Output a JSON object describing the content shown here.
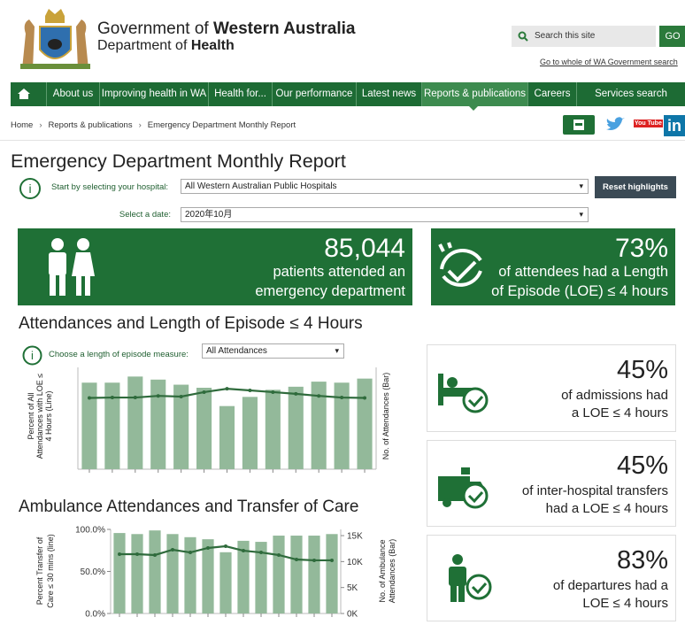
{
  "header": {
    "gov_prefix": "Government of",
    "gov_bold": "Western Australia",
    "dept_prefix": "Department of",
    "dept_bold": "Health",
    "search_placeholder": "Search this site",
    "search_button": "GO",
    "wa_link": "Go to whole of WA Government search"
  },
  "nav": [
    "About us",
    "Improving health in WA",
    "Health for...",
    "Our performance",
    "Latest news",
    "Reports & publications",
    "Careers",
    "Services search"
  ],
  "breadcrumb": [
    "Home",
    "Reports & publications",
    "Emergency Department Monthly Report"
  ],
  "social": {
    "youtube": "You Tube",
    "linkedin": "in"
  },
  "page_title": "Emergency Department Monthly Report",
  "hospital_label": "Start by selecting your hospital:",
  "hospital_value": "All Western Australian Public Hospitals",
  "reset_button": "Reset highlights",
  "date_label": "Select a date:",
  "date_value": "2020年10月",
  "summary": [
    {
      "value": "85,044",
      "lines": [
        "patients attended an",
        "emergency department"
      ]
    },
    {
      "value": "73%",
      "lines": [
        "of attendees had a Length",
        "of Episode (LOE) ≤ 4 hours"
      ]
    }
  ],
  "section1": {
    "title": "Attendances and Length of Episode ≤ 4 Hours",
    "measure_label": "Choose a length of episode measure:",
    "measure_value": "All Attendances"
  },
  "section2": {
    "title": "Ambulance Attendances and Transfer of Care"
  },
  "chart_data": [
    {
      "type": "combo",
      "categories": [
        null,
        null,
        null,
        null,
        null,
        null,
        null,
        null,
        null,
        null,
        null,
        null,
        null
      ],
      "ylabel": [
        "Percent of All",
        "Attendances with LOE ≤",
        "4 Hours (Line)"
      ],
      "y2label": [
        "No. of Attendances (Bar)"
      ],
      "ylim": [
        0,
        100
      ],
      "y2lim": [
        0,
        100000
      ],
      "series": [
        {
          "type": "bar",
          "axis": "y2",
          "color": "#93b99a",
          "values": [
            85000,
            85000,
            91000,
            88000,
            83000,
            80000,
            62000,
            71000,
            78000,
            81000,
            86000,
            85000,
            89000
          ]
        },
        {
          "type": "line",
          "color": "#2f6b3c",
          "values": [
            70,
            70.4,
            70.4,
            72,
            71.3,
            75.7,
            79,
            77.4,
            75.7,
            74,
            72,
            70.4,
            70
          ]
        }
      ]
    },
    {
      "type": "combo",
      "categories": [
        null,
        null,
        null,
        null,
        null,
        null,
        null,
        null,
        null,
        null,
        null,
        null,
        null
      ],
      "ylabel": [
        "Percent Transfer of",
        "Care ≤ 30 mins (line)"
      ],
      "y2label": [
        "No. of Ambulance",
        "Attendances (Bar)"
      ],
      "ylim": [
        0,
        100
      ],
      "yticks": [
        {
          "value": 0,
          "label": "0.0%"
        },
        {
          "value": 50,
          "label": "50.0%"
        },
        {
          "value": 100,
          "label": "100.0%"
        }
      ],
      "y2lim": [
        0,
        16200
      ],
      "y2ticks": [
        {
          "value": 0,
          "label": "0K"
        },
        {
          "value": 5000,
          "label": "5K"
        },
        {
          "value": 10000,
          "label": "10K"
        },
        {
          "value": 15000,
          "label": "15K"
        }
      ],
      "series": [
        {
          "type": "bar",
          "axis": "y2",
          "color": "#93b99a",
          "values": [
            15500,
            15300,
            16000,
            15300,
            14700,
            14300,
            11800,
            14000,
            13800,
            15000,
            15000,
            15000,
            15300
          ]
        },
        {
          "type": "line",
          "color": "#2f6b3c",
          "values": [
            70.5,
            70.5,
            69.5,
            75.8,
            72.6,
            77.9,
            80,
            74.7,
            72.6,
            69.5,
            64.2,
            63.2,
            63.2
          ]
        }
      ]
    }
  ],
  "cards": [
    {
      "value": "45%",
      "lines": [
        "of admissions had",
        "a LOE ≤ 4 hours"
      ]
    },
    {
      "value": "45%",
      "lines": [
        "of inter-hospital transfers",
        "had a LOE ≤ 4 hours"
      ]
    },
    {
      "value": "83%",
      "lines": [
        "of departures had a",
        "LOE ≤ 4 hours"
      ]
    }
  ]
}
